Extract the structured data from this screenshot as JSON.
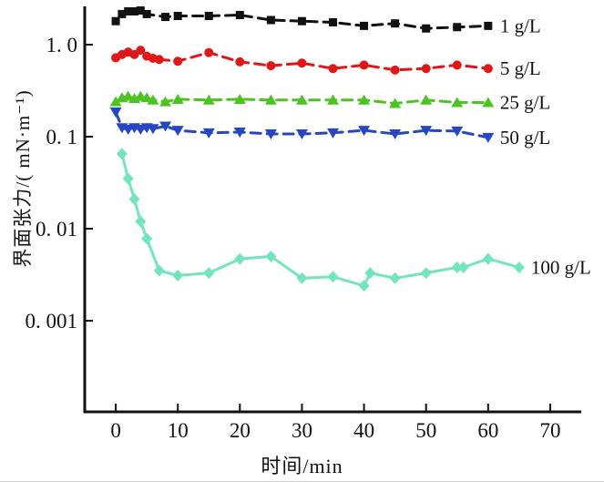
{
  "chart_data": {
    "type": "line",
    "title": "",
    "xlabel": "时间/min",
    "ylabel": "界面张力/( mN·m⁻¹)",
    "y_scale": "log",
    "xlim": [
      -5,
      75
    ],
    "ylim": [
      0.0001,
      2.5
    ],
    "grid": false,
    "legend_position": "inline-right-of-line-ends",
    "x_ticks": [
      0,
      10,
      20,
      30,
      40,
      50,
      60,
      70
    ],
    "y_ticks": [
      {
        "value": 1.0,
        "label": "1. 0"
      },
      {
        "value": 0.1,
        "label": "0. 1"
      },
      {
        "value": 0.01,
        "label": "0. 01"
      },
      {
        "value": 0.001,
        "label": "0. 001"
      }
    ],
    "series": [
      {
        "name": "1 g/L",
        "color": "#111111",
        "marker": "square",
        "dashed": true,
        "x": [
          0,
          1,
          2,
          3,
          4,
          5,
          8,
          10,
          15,
          20,
          25,
          30,
          35,
          40,
          45,
          50,
          55,
          60
        ],
        "y": [
          1.8,
          2.15,
          2.3,
          2.3,
          2.35,
          2.15,
          2.0,
          2.05,
          2.05,
          2.1,
          1.85,
          1.8,
          1.75,
          1.6,
          1.7,
          1.5,
          1.55,
          1.6
        ]
      },
      {
        "name": "5 g/L",
        "color": "#e01717",
        "marker": "circle",
        "dashed": true,
        "x": [
          0,
          1,
          2,
          3,
          4,
          5,
          6,
          7,
          10,
          15,
          20,
          25,
          30,
          35,
          40,
          45,
          50,
          55,
          60
        ],
        "y": [
          0.72,
          0.78,
          0.83,
          0.78,
          0.87,
          0.75,
          0.71,
          0.69,
          0.66,
          0.82,
          0.65,
          0.59,
          0.63,
          0.55,
          0.6,
          0.53,
          0.55,
          0.6,
          0.55
        ]
      },
      {
        "name": "25 g/L",
        "color": "#4bc421",
        "marker": "triangle-up",
        "dashed": true,
        "x": [
          0,
          1,
          2,
          3,
          4,
          5,
          6,
          8,
          10,
          15,
          20,
          25,
          30,
          35,
          40,
          45,
          50,
          55,
          60
        ],
        "y": [
          0.24,
          0.265,
          0.275,
          0.26,
          0.275,
          0.265,
          0.25,
          0.24,
          0.255,
          0.25,
          0.255,
          0.25,
          0.25,
          0.25,
          0.25,
          0.23,
          0.25,
          0.235,
          0.235
        ]
      },
      {
        "name": "50 g/L",
        "color": "#2646c2",
        "marker": "triangle-down",
        "dashed": true,
        "x": [
          0,
          1,
          2,
          3,
          4,
          5,
          6,
          8,
          10,
          15,
          20,
          25,
          30,
          35,
          40,
          45,
          50,
          55,
          60
        ],
        "y": [
          0.185,
          0.125,
          0.12,
          0.125,
          0.12,
          0.125,
          0.122,
          0.13,
          0.117,
          0.11,
          0.112,
          0.107,
          0.107,
          0.11,
          0.117,
          0.107,
          0.117,
          0.115,
          0.098
        ]
      },
      {
        "name": "100 g/L",
        "color": "#72e5c0",
        "marker": "diamond",
        "dashed": false,
        "x": [
          1,
          2,
          3,
          4,
          5,
          7,
          10,
          15,
          20,
          25,
          30,
          35,
          40,
          41,
          45,
          50,
          55,
          56,
          60,
          65
        ],
        "y": [
          0.065,
          0.035,
          0.021,
          0.012,
          0.0078,
          0.0035,
          0.0031,
          0.0033,
          0.0047,
          0.005,
          0.0029,
          0.003,
          0.0024,
          0.0033,
          0.0029,
          0.0033,
          0.0038,
          0.0038,
          0.0047,
          0.0038
        ]
      }
    ]
  }
}
